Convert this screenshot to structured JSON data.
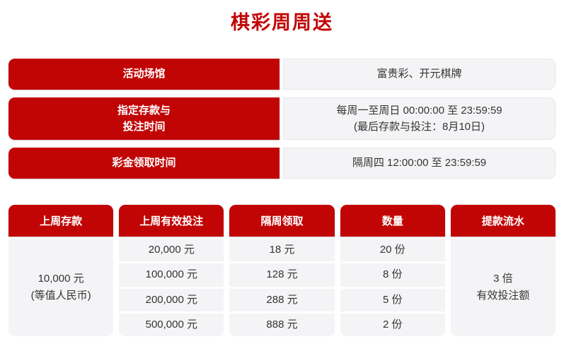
{
  "page": {
    "title": "棋彩周周送"
  },
  "colors": {
    "accent_red": "#c10505",
    "cell_bg": "#f4f4f6",
    "cell_border": "#e7e7ec",
    "text_dark": "#333333"
  },
  "info_rows": [
    {
      "label_lines": [
        "活动场馆"
      ],
      "value_lines": [
        "富贵彩、开元棋牌"
      ]
    },
    {
      "label_lines": [
        "指定存款与",
        "投注时间"
      ],
      "value_lines": [
        "每周一至周日 00:00:00 至 23:59:59",
        "(最后存款与投注：8月10日)"
      ]
    },
    {
      "label_lines": [
        "彩金领取时间"
      ],
      "value_lines": [
        "隔周四 12:00:00 至 23:59:59"
      ]
    }
  ],
  "table": {
    "headers": [
      "上周存款",
      "上周有效投注",
      "隔周领取",
      "数量",
      "提款流水"
    ],
    "deposit_lines": [
      "10,000 元",
      "(等值人民币)"
    ],
    "rows": [
      {
        "bet": "20,000 元",
        "reward": "18 元",
        "quantity": "20 份"
      },
      {
        "bet": "100,000 元",
        "reward": "128 元",
        "quantity": "8 份"
      },
      {
        "bet": "200,000 元",
        "reward": "288 元",
        "quantity": "5 份"
      },
      {
        "bet": "500,000 元",
        "reward": "888 元",
        "quantity": "2 份"
      }
    ],
    "turnover_lines": [
      "3 倍",
      "有效投注额"
    ]
  }
}
